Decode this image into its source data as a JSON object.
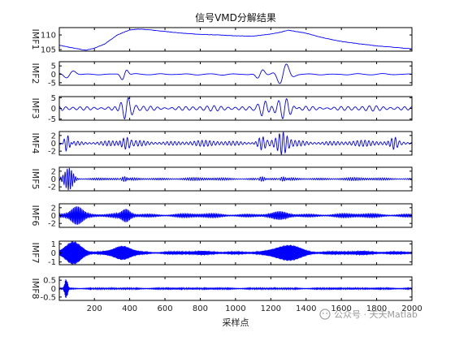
{
  "chart_data": {
    "type": "line",
    "title": "信号VMD分解结果",
    "xlabel": "采样点",
    "x_range": [
      1,
      2000
    ],
    "x_ticks": [
      200,
      400,
      600,
      800,
      1000,
      1200,
      1400,
      1600,
      1800,
      2000
    ],
    "x_tick_labels": [
      "200",
      "400",
      "600",
      "800",
      "1000",
      "1200",
      "1400",
      "1600",
      "1800",
      "2000"
    ],
    "color": "#0000ff",
    "series": [
      {
        "name": "IMF1",
        "ylim": [
          104.5,
          112.5
        ],
        "y_ticks": [
          105,
          110
        ],
        "y_tick_labels": [
          "105",
          "110"
        ],
        "trend_points": [
          [
            1,
            106.5
          ],
          [
            60,
            105.8
          ],
          [
            150,
            104.8
          ],
          [
            200,
            105.5
          ],
          [
            260,
            107.0
          ],
          [
            330,
            110.0
          ],
          [
            400,
            111.7
          ],
          [
            450,
            112.0
          ],
          [
            520,
            111.7
          ],
          [
            600,
            111.2
          ],
          [
            700,
            110.6
          ],
          [
            800,
            110.2
          ],
          [
            900,
            110.0
          ],
          [
            1000,
            109.7
          ],
          [
            1100,
            109.6
          ],
          [
            1200,
            110.3
          ],
          [
            1260,
            111.0
          ],
          [
            1300,
            111.6
          ],
          [
            1340,
            111.2
          ],
          [
            1400,
            110.6
          ],
          [
            1500,
            109.0
          ],
          [
            1600,
            107.8
          ],
          [
            1700,
            107.0
          ],
          [
            1800,
            106.3
          ],
          [
            1900,
            105.8
          ],
          [
            2000,
            105.3
          ]
        ]
      },
      {
        "name": "IMF2",
        "ylim": [
          -6.5,
          7.5
        ],
        "y_ticks": [
          -5,
          0,
          5
        ],
        "y_tick_labels": [
          "-5",
          "0",
          "5"
        ],
        "bursts": [
          {
            "center": 60,
            "width": 40,
            "amp": 3.2,
            "period": 110
          },
          {
            "center": 370,
            "width": 25,
            "amp": 4.0,
            "period": 70
          },
          {
            "center": 1140,
            "width": 30,
            "amp": 3.5,
            "period": 80
          },
          {
            "center": 1270,
            "width": 45,
            "amp": 7.0,
            "period": 90
          }
        ],
        "base_amp": 0.5,
        "base_period": 140
      },
      {
        "name": "IMF3",
        "ylim": [
          -5.5,
          5.5
        ],
        "y_ticks": [
          -5,
          0,
          5
        ],
        "y_tick_labels": [
          "-5",
          "0",
          "5"
        ],
        "bursts": [
          {
            "center": 380,
            "width": 40,
            "amp": 5.0,
            "period": 45
          },
          {
            "center": 1160,
            "width": 40,
            "amp": 3.8,
            "period": 45
          },
          {
            "center": 1280,
            "width": 50,
            "amp": 5.0,
            "period": 45
          }
        ],
        "base_amp": 1.3,
        "base_period": 40
      },
      {
        "name": "IMF4",
        "ylim": [
          -3,
          3
        ],
        "y_ticks": [
          -2,
          0,
          2
        ],
        "y_tick_labels": [
          "-2",
          "0",
          "2"
        ],
        "bursts": [
          {
            "center": 45,
            "width": 22,
            "amp": 2.6,
            "period": 22
          },
          {
            "center": 380,
            "width": 35,
            "amp": 1.6,
            "period": 22
          },
          {
            "center": 1150,
            "width": 30,
            "amp": 1.8,
            "period": 22
          },
          {
            "center": 1265,
            "width": 35,
            "amp": 2.5,
            "period": 22
          },
          {
            "center": 1900,
            "width": 25,
            "amp": 1.4,
            "period": 22
          }
        ],
        "base_amp": 0.8,
        "base_period": 22
      },
      {
        "name": "IMF5",
        "ylim": [
          -3,
          3
        ],
        "y_ticks": [
          -2,
          0,
          2
        ],
        "y_tick_labels": [
          "-2",
          "0",
          "2"
        ],
        "bursts": [
          {
            "center": 55,
            "width": 30,
            "amp": 2.7,
            "period": 12
          },
          {
            "center": 370,
            "width": 25,
            "amp": 0.9,
            "period": 12
          },
          {
            "center": 1150,
            "width": 25,
            "amp": 0.8,
            "period": 12
          },
          {
            "center": 1270,
            "width": 25,
            "amp": 0.8,
            "period": 12
          }
        ],
        "base_amp": 0.4,
        "base_period": 12
      },
      {
        "name": "IMF6",
        "ylim": [
          -3,
          3
        ],
        "y_ticks": [
          -2,
          0,
          2
        ],
        "y_tick_labels": [
          "-2",
          "0",
          "2"
        ],
        "bursts": [
          {
            "center": 100,
            "width": 45,
            "amp": 2.2,
            "period": 7
          },
          {
            "center": 380,
            "width": 30,
            "amp": 1.3,
            "period": 7
          },
          {
            "center": 1250,
            "width": 60,
            "amp": 1.1,
            "period": 7
          }
        ],
        "base_amp": 0.55,
        "base_period": 7
      },
      {
        "name": "IMF7",
        "ylim": [
          -1.3,
          1.3
        ],
        "y_ticks": [
          -1,
          0,
          1
        ],
        "y_tick_labels": [
          "-1",
          "0",
          "1"
        ],
        "bursts": [
          {
            "center": 80,
            "width": 60,
            "amp": 1.2,
            "period": 5
          },
          {
            "center": 360,
            "width": 60,
            "amp": 0.7,
            "period": 5
          },
          {
            "center": 1300,
            "width": 90,
            "amp": 0.8,
            "period": 5
          }
        ],
        "base_amp": 0.22,
        "base_period": 5
      },
      {
        "name": "IMF8",
        "ylim": [
          -0.7,
          0.7
        ],
        "y_ticks": [
          -0.5,
          0,
          0.5
        ],
        "y_tick_labels": [
          "-0.5",
          "0",
          "0.5"
        ],
        "bursts": [
          {
            "center": 40,
            "width": 12,
            "amp": 0.6,
            "period": 3
          }
        ],
        "base_amp": 0.05,
        "base_period": 3
      }
    ]
  },
  "watermark": {
    "icon": "wechat-icon",
    "text": "公众号 · 天天Matlab"
  }
}
